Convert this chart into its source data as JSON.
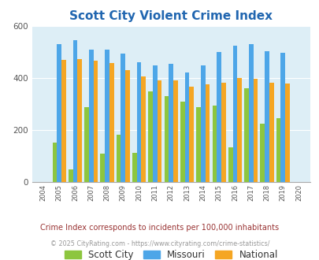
{
  "title": "Scott City Violent Crime Index",
  "title_color": "#2166b0",
  "years": [
    2004,
    2005,
    2006,
    2007,
    2008,
    2009,
    2010,
    2011,
    2012,
    2013,
    2014,
    2015,
    2016,
    2017,
    2018,
    2019,
    2020
  ],
  "scott_city": [
    null,
    153,
    47,
    289,
    110,
    182,
    113,
    350,
    330,
    310,
    289,
    293,
    132,
    360,
    225,
    245,
    null
  ],
  "missouri": [
    null,
    530,
    545,
    510,
    510,
    495,
    460,
    450,
    455,
    420,
    447,
    500,
    525,
    530,
    503,
    498,
    null
  ],
  "national": [
    null,
    470,
    473,
    468,
    458,
    430,
    405,
    390,
    390,
    368,
    375,
    383,
    400,
    398,
    383,
    380,
    null
  ],
  "bar_color_scott": "#8dc63f",
  "bar_color_missouri": "#4da6e8",
  "bar_color_national": "#f5a623",
  "bg_color": "#ddeef6",
  "ylim": [
    0,
    600
  ],
  "yticks": [
    0,
    200,
    400,
    600
  ],
  "footnote1": "Crime Index corresponds to incidents per 100,000 inhabitants",
  "footnote2": "© 2025 CityRating.com - https://www.cityrating.com/crime-statistics/",
  "legend_labels": [
    "Scott City",
    "Missouri",
    "National"
  ],
  "footnote1_color": "#993333",
  "footnote2_color": "#999999",
  "legend_text_color": "#333333"
}
